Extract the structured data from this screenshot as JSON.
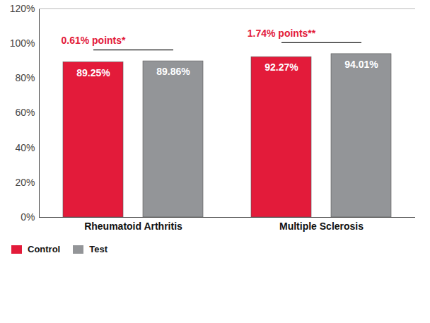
{
  "chart_data": {
    "type": "bar",
    "categories": [
      "Rheumatoid Arthritis",
      "Multiple Sclerosis"
    ],
    "series": [
      {
        "name": "Control",
        "color": "#e31b3a",
        "values": [
          89.25,
          92.27
        ],
        "value_labels": [
          "89.25%",
          "92.27%"
        ]
      },
      {
        "name": "Test",
        "color": "#939598",
        "values": [
          89.86,
          94.01
        ],
        "value_labels": [
          "89.86%",
          "94.01%"
        ]
      }
    ],
    "annotations": [
      {
        "text": "0.61% points*",
        "category": "Rheumatoid Arthritis"
      },
      {
        "text": "1.74% points**",
        "category": "Multiple Sclerosis"
      }
    ],
    "ylim": [
      0,
      120
    ],
    "yticks": [
      {
        "value": 0,
        "label": "0%"
      },
      {
        "value": 20,
        "label": "20%"
      },
      {
        "value": 40,
        "label": "40%"
      },
      {
        "value": 60,
        "label": "60%"
      },
      {
        "value": 80,
        "label": "80%"
      },
      {
        "value": 100,
        "label": "100%"
      },
      {
        "value": 120,
        "label": "120%"
      }
    ],
    "grid": false,
    "data_labels": true,
    "legend": "bottom-left"
  }
}
